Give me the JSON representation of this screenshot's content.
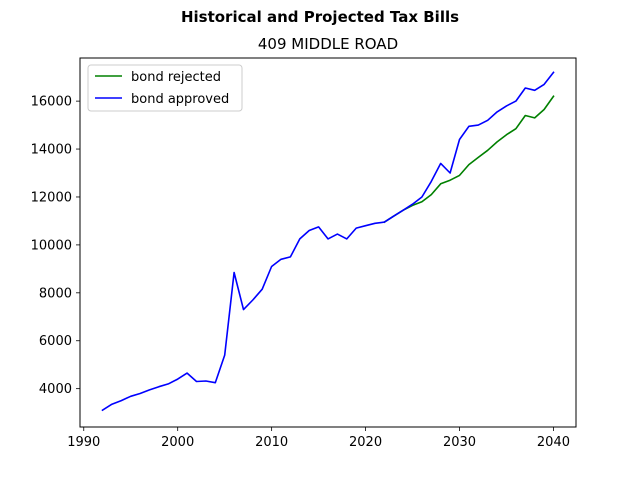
{
  "chart_data": {
    "type": "line",
    "title": "Historical and Projected Tax Bills",
    "subtitle": "409 MIDDLE ROAD",
    "xlim": [
      1989.6,
      2042.4
    ],
    "ylim": [
      2400,
      17800
    ],
    "xticks": [
      1990,
      2000,
      2010,
      2020,
      2030,
      2040
    ],
    "yticks": [
      4000,
      6000,
      8000,
      10000,
      12000,
      14000,
      16000
    ],
    "grid": false,
    "legend_placement": "top-left",
    "series": [
      {
        "name": "bond rejected",
        "color": "#008000",
        "x": [
          2022,
          2023,
          2024,
          2025,
          2026,
          2027,
          2028,
          2029,
          2030,
          2031,
          2032,
          2033,
          2034,
          2035,
          2036,
          2037,
          2038,
          2039,
          2040
        ],
        "y": [
          10950,
          11200,
          11450,
          11650,
          11800,
          12100,
          12550,
          12700,
          12900,
          13350,
          13650,
          13950,
          14300,
          14600,
          14850,
          15400,
          15300,
          15650,
          16200
        ]
      },
      {
        "name": "bond approved",
        "color": "#0000ff",
        "x": [
          1992,
          1993,
          1994,
          1995,
          1996,
          1997,
          1998,
          1999,
          2000,
          2001,
          2002,
          2003,
          2004,
          2005,
          2006,
          2007,
          2008,
          2009,
          2010,
          2011,
          2012,
          2013,
          2014,
          2015,
          2016,
          2017,
          2018,
          2019,
          2020,
          2021,
          2022,
          2023,
          2024,
          2025,
          2026,
          2027,
          2028,
          2029,
          2030,
          2031,
          2032,
          2033,
          2034,
          2035,
          2036,
          2037,
          2038,
          2039,
          2040
        ],
        "y": [
          3100,
          3350,
          3500,
          3680,
          3800,
          3950,
          4080,
          4200,
          4400,
          4650,
          4300,
          4320,
          4250,
          5400,
          8850,
          7300,
          7700,
          8150,
          9100,
          9400,
          9500,
          10250,
          10600,
          10750,
          10250,
          10450,
          10250,
          10700,
          10800,
          10900,
          10950,
          11200,
          11450,
          11700,
          12000,
          12650,
          13400,
          13000,
          14400,
          14950,
          15000,
          15200,
          15550,
          15800,
          16000,
          16550,
          16450,
          16700,
          17200
        ]
      }
    ]
  }
}
